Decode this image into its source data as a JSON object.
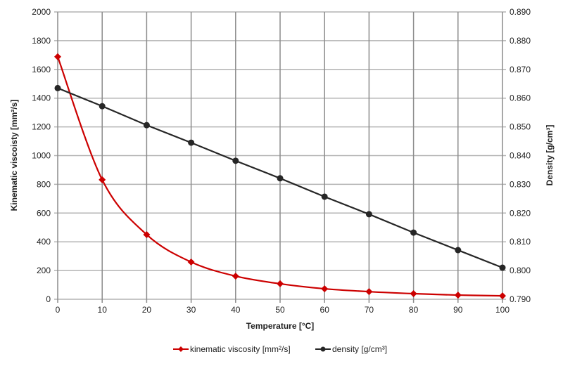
{
  "chart_data": {
    "type": "line",
    "title": "",
    "xlabel": "Temperature  [°C]",
    "ylabel": "Kinematic viscoisty  [mm²/s]",
    "y2label": "Density  [g/cm³]",
    "x": [
      0,
      10,
      20,
      30,
      40,
      50,
      60,
      70,
      80,
      90,
      100
    ],
    "xlim": [
      0,
      100
    ],
    "ylim": [
      0,
      2000
    ],
    "y2lim": [
      0.79,
      0.89
    ],
    "x_ticks": [
      "0",
      "10",
      "20",
      "30",
      "40",
      "50",
      "60",
      "70",
      "80",
      "90",
      "100"
    ],
    "y_ticks": [
      "0",
      "200",
      "400",
      "600",
      "800",
      "1000",
      "1200",
      "1400",
      "1600",
      "1800",
      "2000"
    ],
    "y2_ticks": [
      "0.790",
      "0.800",
      "0.810",
      "0.820",
      "0.830",
      "0.840",
      "0.850",
      "0.860",
      "0.870",
      "0.880",
      "0.890"
    ],
    "grid": true,
    "legend_position": "bottom",
    "series": [
      {
        "name": "kinematic viscosity [mm²/s]",
        "axis": "left",
        "color": "#cc0000",
        "marker": "diamond",
        "smooth": true,
        "values": [
          1688,
          832,
          450,
          259,
          161,
          108,
          73,
          53,
          39,
          29,
          24
        ]
      },
      {
        "name": "density [g/cm³]",
        "axis": "right",
        "color": "#262626",
        "marker": "circle",
        "smooth": false,
        "values": [
          0.8635,
          0.8572,
          0.8506,
          0.8445,
          0.8382,
          0.8321,
          0.8257,
          0.8196,
          0.8132,
          0.8071,
          0.801
        ]
      }
    ]
  }
}
